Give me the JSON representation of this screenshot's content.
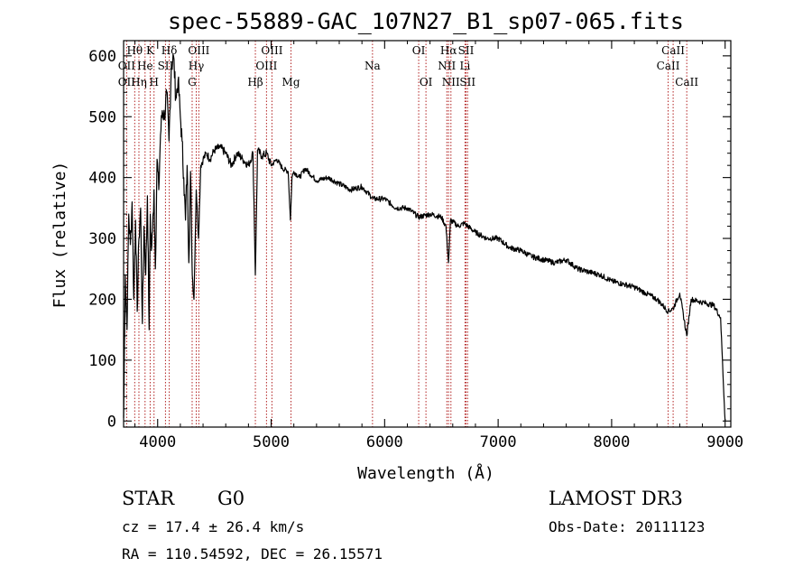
{
  "chart_data": {
    "type": "line",
    "title": "spec-55889-GAC_107N27_B1_sp07-065.fits",
    "xlabel": "Wavelength (Å)",
    "ylabel": "Flux (relative)",
    "xlim": [
      3700,
      9050
    ],
    "ylim": [
      -10,
      625
    ],
    "xticks": [
      4000,
      5000,
      6000,
      7000,
      8000,
      9000
    ],
    "yticks": [
      0,
      100,
      200,
      300,
      400,
      500,
      600
    ],
    "grid": false,
    "series": [
      {
        "name": "spectrum",
        "x": [
          3700,
          3715,
          3730,
          3745,
          3760,
          3775,
          3790,
          3805,
          3820,
          3835,
          3850,
          3865,
          3880,
          3895,
          3910,
          3925,
          3935,
          3945,
          3955,
          3968,
          3980,
          3995,
          4010,
          4025,
          4040,
          4060,
          4080,
          4100,
          4120,
          4140,
          4160,
          4180,
          4200,
          4215,
          4230,
          4245,
          4260,
          4275,
          4290,
          4305,
          4320,
          4340,
          4360,
          4380,
          4400,
          4430,
          4460,
          4500,
          4550,
          4600,
          4650,
          4700,
          4750,
          4800,
          4840,
          4861,
          4880,
          4920,
          4960,
          5000,
          5050,
          5100,
          5150,
          5170,
          5183,
          5200,
          5250,
          5300,
          5400,
          5500,
          5600,
          5700,
          5800,
          5900,
          6000,
          6100,
          6200,
          6300,
          6400,
          6500,
          6540,
          6563,
          6580,
          6650,
          6700,
          6800,
          6900,
          7000,
          7100,
          7200,
          7300,
          7400,
          7500,
          7600,
          7700,
          7800,
          7900,
          8000,
          8100,
          8200,
          8300,
          8400,
          8450,
          8498,
          8542,
          8600,
          8662,
          8700,
          8800,
          8900,
          8960,
          8985,
          9000
        ],
        "y": [
          5,
          240,
          150,
          340,
          290,
          360,
          200,
          330,
          180,
          300,
          350,
          160,
          320,
          240,
          370,
          150,
          340,
          280,
          310,
          380,
          250,
          430,
          380,
          470,
          510,
          500,
          540,
          460,
          580,
          600,
          530,
          560,
          500,
          460,
          400,
          330,
          420,
          260,
          410,
          240,
          200,
          380,
          300,
          420,
          430,
          440,
          430,
          445,
          450,
          440,
          420,
          440,
          430,
          420,
          440,
          240,
          445,
          435,
          440,
          420,
          430,
          415,
          410,
          330,
          400,
          410,
          400,
          415,
          395,
          400,
          390,
          380,
          385,
          365,
          365,
          350,
          350,
          335,
          340,
          335,
          320,
          260,
          330,
          320,
          325,
          310,
          300,
          300,
          285,
          280,
          270,
          265,
          260,
          265,
          250,
          245,
          240,
          230,
          225,
          220,
          210,
          200,
          190,
          180,
          185,
          210,
          140,
          200,
          195,
          190,
          170,
          60,
          0
        ]
      }
    ],
    "line_markers": [
      {
        "label": "Hθ",
        "x": 3798,
        "row": 1
      },
      {
        "label": "OII",
        "x": 3727,
        "row": 2
      },
      {
        "label": "He",
        "x": 3889,
        "row": 2
      },
      {
        "label": "OII",
        "x": 3727,
        "row": 3
      },
      {
        "label": "Hη",
        "x": 3835,
        "row": 3
      },
      {
        "label": "K",
        "x": 3934,
        "row": 1
      },
      {
        "label": "H",
        "x": 3968,
        "row": 3
      },
      {
        "label": "Hδ",
        "x": 4102,
        "row": 1
      },
      {
        "label": "SII",
        "x": 4069,
        "row": 2
      },
      {
        "label": "OIII",
        "x": 4363,
        "row": 1
      },
      {
        "label": "Hγ",
        "x": 4340,
        "row": 2
      },
      {
        "label": "G",
        "x": 4304,
        "row": 3
      },
      {
        "label": "Hβ",
        "x": 4861,
        "row": 3
      },
      {
        "label": "OIII",
        "x": 5007,
        "row": 1
      },
      {
        "label": "OIII",
        "x": 4959,
        "row": 2
      },
      {
        "label": "Mg",
        "x": 5175,
        "row": 3
      },
      {
        "label": "Na",
        "x": 5893,
        "row": 2
      },
      {
        "label": "OI",
        "x": 6300,
        "row": 1
      },
      {
        "label": "OI",
        "x": 6364,
        "row": 3
      },
      {
        "label": "Hα",
        "x": 6563,
        "row": 1
      },
      {
        "label": "NII",
        "x": 6548,
        "row": 2
      },
      {
        "label": "NII",
        "x": 6584,
        "row": 3
      },
      {
        "label": "SII",
        "x": 6717,
        "row": 1
      },
      {
        "label": "Li",
        "x": 6708,
        "row": 2
      },
      {
        "label": "SII",
        "x": 6731,
        "row": 3
      },
      {
        "label": "CaII",
        "x": 8542,
        "row": 1
      },
      {
        "label": "CaII",
        "x": 8498,
        "row": 2
      },
      {
        "label": "CaII",
        "x": 8662,
        "row": 3
      }
    ],
    "annotations": {
      "class": "STAR",
      "subclass": "G0",
      "survey": "LAMOST DR3",
      "cz": "cz = 17.4 ± 26.4 km/s",
      "obs_date": "Obs-Date: 20111123",
      "coords": "RA = 110.54592, DEC =  26.15571"
    },
    "colors": {
      "spectrum": "#000000",
      "marker_lines": "#b22222",
      "axes": "#000000",
      "background": "#ffffff"
    }
  }
}
